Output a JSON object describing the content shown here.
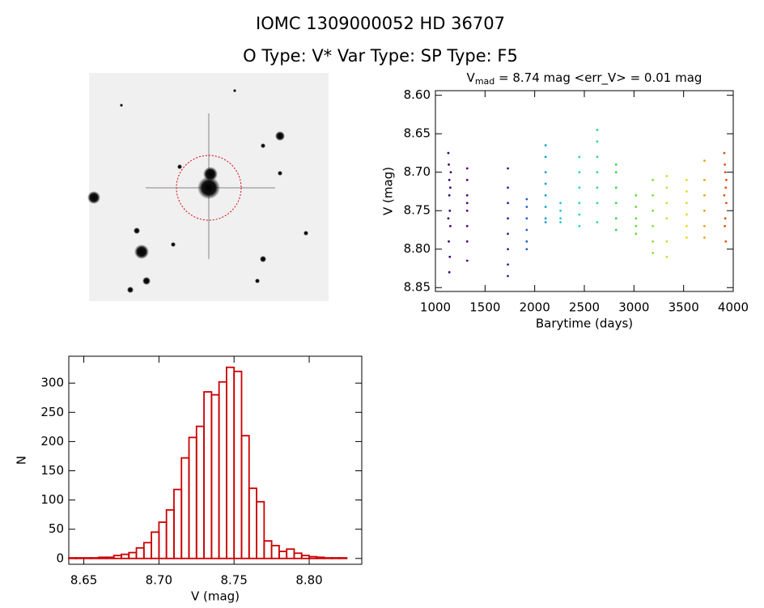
{
  "header": {
    "title": "IOMC 1309000052   HD  36707",
    "subtitle": "O Type: V*  Var Type:   SP Type: F5"
  },
  "chart_data": [
    {
      "type": "scatter",
      "title": [
        "V",
        "mad",
        " = 8.74 mag <err_V> = 0.01 mag"
      ],
      "xlabel": "Barytime (days)",
      "ylabel": "V (mag)",
      "xlim": [
        1000,
        4000
      ],
      "xticks": [
        1000,
        1500,
        2000,
        2500,
        3000,
        3500,
        4000
      ],
      "ylim": [
        8.855,
        8.594
      ],
      "yticks": [
        {
          "value": 8.6,
          "label": "8.60"
        },
        {
          "value": 8.65,
          "label": "8.65"
        },
        {
          "value": 8.7,
          "label": "8.70"
        },
        {
          "value": 8.75,
          "label": "8.75"
        },
        {
          "value": 8.8,
          "label": "8.80"
        },
        {
          "value": 8.85,
          "label": "8.85"
        }
      ],
      "series": [
        {
          "color": "#3a0070",
          "x": [
            1130,
            1135,
            1140,
            1140,
            1145,
            1150,
            1135,
            1145,
            1140,
            1150,
            1130,
            1155
          ],
          "values": [
            8.675,
            8.69,
            8.71,
            8.73,
            8.75,
            8.77,
            8.79,
            8.81,
            8.83,
            8.72,
            8.76,
            8.7
          ]
        },
        {
          "color": "#4b0090",
          "x": [
            1320,
            1320,
            1320,
            1320,
            1320,
            1320,
            1320,
            1320
          ],
          "values": [
            8.695,
            8.71,
            8.73,
            8.75,
            8.77,
            8.79,
            8.815,
            8.74
          ]
        },
        {
          "color": "#3a1aa0",
          "x": [
            1730,
            1730,
            1730,
            1730,
            1730,
            1730,
            1730,
            1730
          ],
          "values": [
            8.695,
            8.72,
            8.74,
            8.76,
            8.78,
            8.8,
            8.82,
            8.835
          ]
        },
        {
          "color": "#2060c0",
          "x": [
            1920,
            1920,
            1920,
            1920,
            1920,
            1920
          ],
          "values": [
            8.735,
            8.745,
            8.76,
            8.775,
            8.79,
            8.8
          ]
        },
        {
          "color": "#10a0d0",
          "x": [
            2110,
            2110,
            2110,
            2110,
            2110,
            2110,
            2110,
            2110
          ],
          "values": [
            8.665,
            8.68,
            8.7,
            8.715,
            8.73,
            8.745,
            8.76,
            8.765
          ]
        },
        {
          "color": "#20c8d0",
          "x": [
            2260,
            2260,
            2260,
            2260
          ],
          "values": [
            8.74,
            8.75,
            8.76,
            8.765
          ]
        },
        {
          "color": "#20d8b0",
          "x": [
            2450,
            2450,
            2450,
            2450,
            2450,
            2450
          ],
          "values": [
            8.68,
            8.7,
            8.72,
            8.74,
            8.755,
            8.77
          ]
        },
        {
          "color": "#30d890",
          "x": [
            2630,
            2630,
            2630,
            2630,
            2630,
            2630,
            2630
          ],
          "values": [
            8.645,
            8.66,
            8.68,
            8.7,
            8.72,
            8.74,
            8.765
          ]
        },
        {
          "color": "#30d850",
          "x": [
            2820,
            2820,
            2820,
            2820,
            2820,
            2820
          ],
          "values": [
            8.69,
            8.7,
            8.72,
            8.74,
            8.76,
            8.775
          ]
        },
        {
          "color": "#60d840",
          "x": [
            3020,
            3020,
            3020,
            3020,
            3020
          ],
          "values": [
            8.73,
            8.745,
            8.76,
            8.77,
            8.78
          ]
        },
        {
          "color": "#90d830",
          "x": [
            3190,
            3190,
            3190,
            3190,
            3190,
            3190
          ],
          "values": [
            8.71,
            8.73,
            8.75,
            8.77,
            8.79,
            8.805
          ]
        },
        {
          "color": "#c8e030",
          "x": [
            3330,
            3330,
            3330,
            3330,
            3330,
            3330
          ],
          "values": [
            8.705,
            8.72,
            8.74,
            8.76,
            8.79,
            8.81
          ]
        },
        {
          "color": "#e8d820",
          "x": [
            3530,
            3530,
            3530,
            3530,
            3530,
            3530
          ],
          "values": [
            8.71,
            8.725,
            8.74,
            8.755,
            8.77,
            8.785
          ]
        },
        {
          "color": "#f0a010",
          "x": [
            3710,
            3710,
            3710,
            3710,
            3710,
            3710
          ],
          "values": [
            8.685,
            8.71,
            8.73,
            8.75,
            8.77,
            8.785
          ]
        },
        {
          "color": "#e05010",
          "x": [
            3910,
            3915,
            3920,
            3925,
            3930,
            3920,
            3915,
            3925,
            3910,
            3930
          ],
          "values": [
            8.675,
            8.69,
            8.7,
            8.72,
            8.74,
            8.76,
            8.77,
            8.79,
            8.73,
            8.71
          ]
        }
      ]
    },
    {
      "type": "histogram",
      "xlabel": "V (mag)",
      "ylabel": "N",
      "color": "#cc0000",
      "xlim": [
        8.64,
        8.835
      ],
      "xticks": [
        {
          "value": 8.65,
          "label": "8.65"
        },
        {
          "value": 8.7,
          "label": "8.70"
        },
        {
          "value": 8.75,
          "label": "8.75"
        },
        {
          "value": 8.8,
          "label": "8.80"
        }
      ],
      "ylim": [
        -10,
        346
      ],
      "yticks": [
        0,
        50,
        100,
        150,
        200,
        250,
        300
      ],
      "bins": [
        8.64,
        8.645,
        8.65,
        8.655,
        8.66,
        8.665,
        8.67,
        8.675,
        8.68,
        8.685,
        8.69,
        8.695,
        8.7,
        8.705,
        8.71,
        8.715,
        8.72,
        8.725,
        8.73,
        8.735,
        8.74,
        8.745,
        8.75,
        8.755,
        8.76,
        8.765,
        8.77,
        8.775,
        8.78,
        8.785,
        8.79,
        8.795,
        8.8,
        8.805,
        8.81,
        8.815,
        8.82,
        8.825,
        8.83,
        8.835
      ],
      "values": [
        1,
        1,
        1,
        1,
        2,
        2,
        5,
        7,
        10,
        18,
        27,
        45,
        62,
        83,
        118,
        172,
        207,
        226,
        285,
        280,
        302,
        327,
        320,
        210,
        120,
        97,
        30,
        22,
        12,
        16,
        9,
        5,
        3,
        2,
        1,
        1,
        1,
        0,
        0
      ]
    }
  ]
}
